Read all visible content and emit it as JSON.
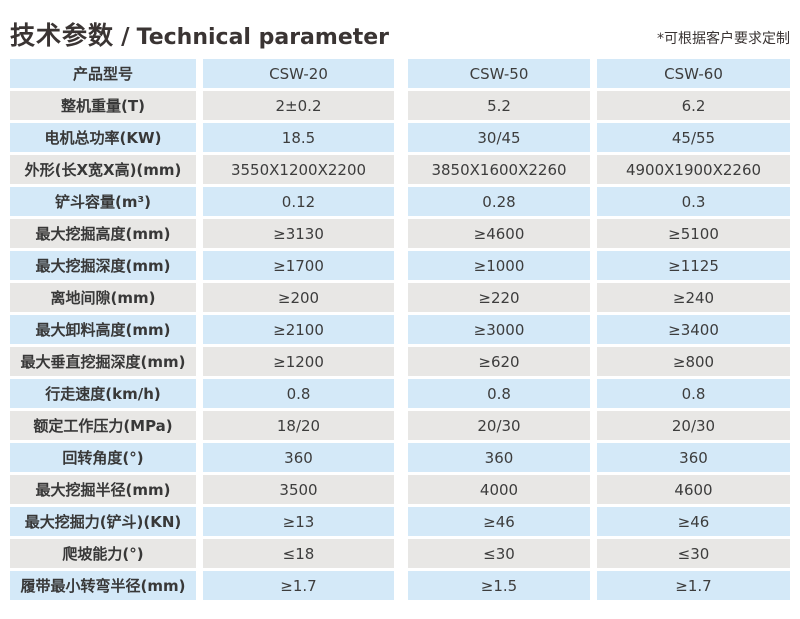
{
  "title": {
    "zh": "技术参数",
    "sep": "/",
    "en": "Technical parameter"
  },
  "note": "*可根据客户要求定制",
  "colors": {
    "row_blue": "#d4e9f8",
    "row_gray": "#e8e7e5",
    "text_dark": "#3a3433"
  },
  "table": {
    "header_row": [
      "产品型号",
      "CSW-20",
      "CSW-50",
      "CSW-60"
    ],
    "rows": [
      [
        "产品型号",
        "CSW-20",
        "CSW-50",
        "CSW-60"
      ],
      [
        "整机重量(T)",
        "2±0.2",
        "5.2",
        "6.2"
      ],
      [
        "电机总功率(KW)",
        "18.5",
        "30/45",
        "45/55"
      ],
      [
        "外形(长X宽X高)(mm)",
        "3550X1200X2200",
        "3850X1600X2260",
        "4900X1900X2260"
      ],
      [
        "铲斗容量(m³)",
        "0.12",
        "0.28",
        "0.3"
      ],
      [
        "最大挖掘高度(mm)",
        "≥3130",
        "≥4600",
        "≥5100"
      ],
      [
        "最大挖掘深度(mm)",
        "≥1700",
        "≥1000",
        "≥1125"
      ],
      [
        "离地间隙(mm)",
        "≥200",
        "≥220",
        "≥240"
      ],
      [
        "最大卸料高度(mm)",
        "≥2100",
        "≥3000",
        "≥3400"
      ],
      [
        "最大垂直挖掘深度(mm)",
        "≥1200",
        "≥620",
        "≥800"
      ],
      [
        "行走速度(km/h)",
        "0.8",
        "0.8",
        "0.8"
      ],
      [
        "额定工作压力(MPa)",
        "18/20",
        "20/30",
        "20/30"
      ],
      [
        "回转角度(°)",
        "360",
        "360",
        "360"
      ],
      [
        "最大挖掘半径(mm)",
        "3500",
        "4000",
        "4600"
      ],
      [
        "最大挖掘力(铲斗)(KN)",
        "≥13",
        "≥46",
        "≥46"
      ],
      [
        "爬坡能力(°)",
        "≤18",
        "≤30",
        "≤30"
      ],
      [
        "履带最小转弯半径(mm)",
        "≥1.7",
        "≥1.5",
        "≥1.7"
      ]
    ]
  }
}
